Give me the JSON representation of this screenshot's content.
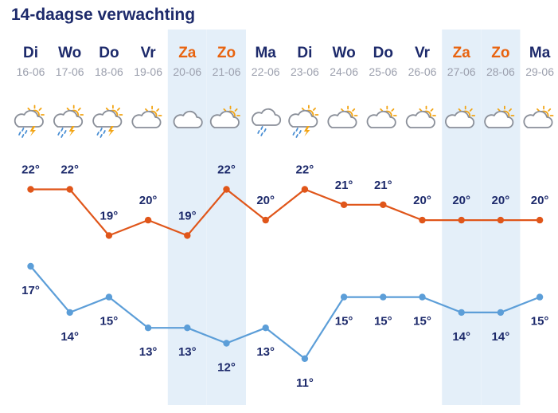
{
  "title": "14-daagse verwachting",
  "chart_data": {
    "type": "line",
    "days": [
      {
        "name": "Di",
        "date": "16-06",
        "weekend": false,
        "icon": "sun-cloud-thunderstorm-icon"
      },
      {
        "name": "Wo",
        "date": "17-06",
        "weekend": false,
        "icon": "sun-cloud-thunderstorm-icon"
      },
      {
        "name": "Do",
        "date": "18-06",
        "weekend": false,
        "icon": "sun-cloud-thunderstorm-icon"
      },
      {
        "name": "Vr",
        "date": "19-06",
        "weekend": false,
        "icon": "sun-cloud-icon"
      },
      {
        "name": "Za",
        "date": "20-06",
        "weekend": true,
        "icon": "cloud-icon"
      },
      {
        "name": "Zo",
        "date": "21-06",
        "weekend": true,
        "icon": "sun-cloud-icon"
      },
      {
        "name": "Ma",
        "date": "22-06",
        "weekend": false,
        "icon": "cloud-rain-icon"
      },
      {
        "name": "Di",
        "date": "23-06",
        "weekend": false,
        "icon": "sun-cloud-thunderstorm-icon"
      },
      {
        "name": "Wo",
        "date": "24-06",
        "weekend": false,
        "icon": "sun-cloud-icon"
      },
      {
        "name": "Do",
        "date": "25-06",
        "weekend": false,
        "icon": "sun-cloud-icon"
      },
      {
        "name": "Vr",
        "date": "26-06",
        "weekend": false,
        "icon": "sun-cloud-icon"
      },
      {
        "name": "Za",
        "date": "27-06",
        "weekend": true,
        "icon": "sun-cloud-icon"
      },
      {
        "name": "Zo",
        "date": "28-06",
        "weekend": true,
        "icon": "sun-cloud-icon"
      },
      {
        "name": "Ma",
        "date": "29-06",
        "weekend": false,
        "icon": "sun-cloud-icon"
      }
    ],
    "series": [
      {
        "values": [
          22,
          22,
          19,
          20,
          19,
          22,
          20,
          22,
          21,
          21,
          20,
          20,
          20,
          20
        ],
        "color": "#e0561a"
      },
      {
        "values": [
          17,
          14,
          15,
          13,
          13,
          12,
          13,
          11,
          15,
          15,
          15,
          14,
          14,
          15
        ],
        "color": "#5c9ed8"
      }
    ],
    "unit_suffix": "°"
  },
  "colors": {
    "weekday_text": "#1d2a6b",
    "weekend_text": "#e8630f",
    "weekend_band": "#e4eff9",
    "date_text": "#9b9fad"
  }
}
